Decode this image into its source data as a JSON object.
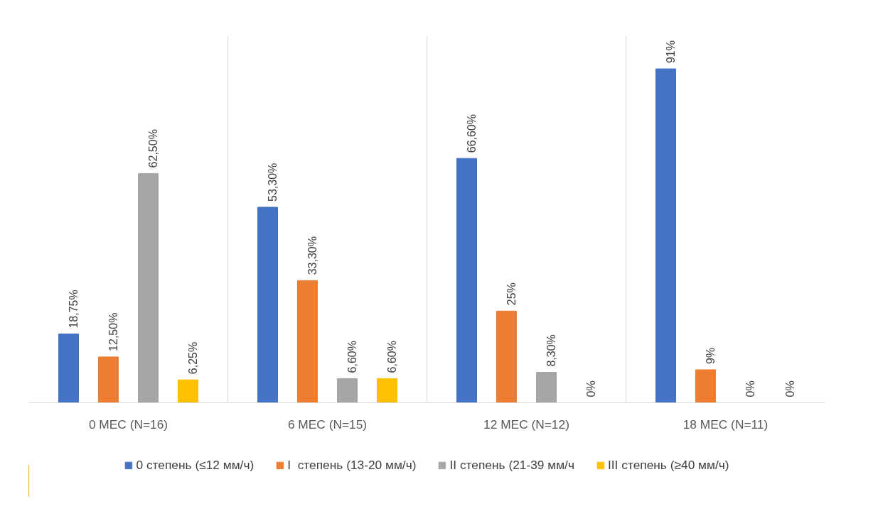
{
  "chart_data": {
    "type": "bar",
    "categories": [
      "0 МЕС (N=16)",
      "6 МЕС (N=15)",
      "12 МЕС (N=12)",
      "18 МЕС (N=11)"
    ],
    "series": [
      {
        "name": "0 степень (≤12 мм/ч)",
        "color": "#4472c4",
        "values": [
          18.75,
          53.3,
          66.6,
          91
        ],
        "value_labels": [
          "18,75%",
          "53,30%",
          "66,60%",
          "91%"
        ]
      },
      {
        "name": "I  степень (13-20 мм/ч)",
        "color": "#ed7d31",
        "values": [
          12.5,
          33.3,
          25,
          9
        ],
        "value_labels": [
          "12,50%",
          "33,30%",
          "25%",
          "9%"
        ]
      },
      {
        "name": "II степень (21-39 мм/ч",
        "color": "#a5a5a5",
        "values": [
          62.5,
          6.6,
          8.3,
          0
        ],
        "value_labels": [
          "62,50%",
          "6,60%",
          "8,30%",
          "0%"
        ]
      },
      {
        "name": "III степень (≥40 мм/ч)",
        "color": "#ffc000",
        "values": [
          6.25,
          6.6,
          0,
          0
        ],
        "value_labels": [
          "6,25%",
          "6,60%",
          "0%",
          "0%"
        ]
      }
    ],
    "ylim": [
      0,
      100
    ],
    "tick_labels": "x",
    "grid": "x",
    "legend": "bottom"
  }
}
